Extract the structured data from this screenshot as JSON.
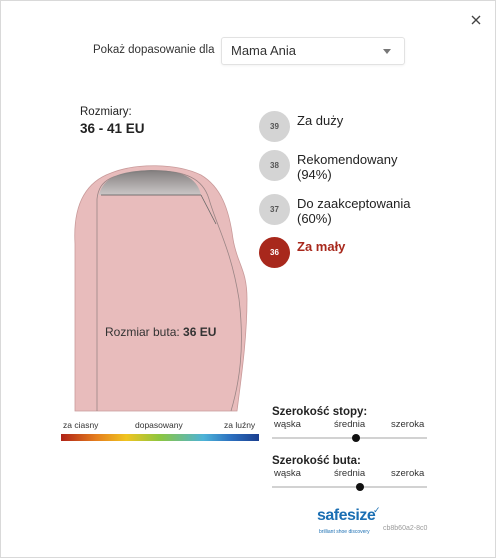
{
  "dialog": {
    "close_icon": "close-icon"
  },
  "header": {
    "show_fit_label": "Pokaż dopasowanie dla",
    "profile_selected": "Mama Ania"
  },
  "sizes": {
    "label": "Rozmiary:",
    "range": "36 - 41 EU"
  },
  "fit_visual": {
    "shoe_size_label": "Rozmiar buta:",
    "shoe_size_value": "36 EU",
    "scale": {
      "left": "za ciasny",
      "middle": "dopasowany",
      "right": "za luźny"
    }
  },
  "size_options": [
    {
      "size": "39",
      "label_line1": "Za duży",
      "label_line2": "",
      "active": false
    },
    {
      "size": "38",
      "label_line1": "Rekomendowany",
      "label_line2": "(94%)",
      "active": false
    },
    {
      "size": "37",
      "label_line1": "Do zaakceptowania",
      "label_line2": "(60%)",
      "active": false
    },
    {
      "size": "36",
      "label_line1": "Za mały",
      "label_line2": "",
      "active": true
    }
  ],
  "foot_width": {
    "title": "Szerokość stopy:",
    "narrow": "wąska",
    "medium": "średnia",
    "wide": "szeroka",
    "level": 0.54
  },
  "shoe_width": {
    "title": "Szerokość buta:",
    "narrow": "wąska",
    "medium": "średnia",
    "wide": "szeroka",
    "level": 0.57
  },
  "footer": {
    "brand": "safesize",
    "tagline": "brilliant shoe discovery",
    "session_id": "cb8b60a2-8c0"
  },
  "colors": {
    "active_size": "#a8281c",
    "inactive_size": "#d4d4d4",
    "brand": "#1b6fb3",
    "foot_fill": "#e8bcbc"
  }
}
